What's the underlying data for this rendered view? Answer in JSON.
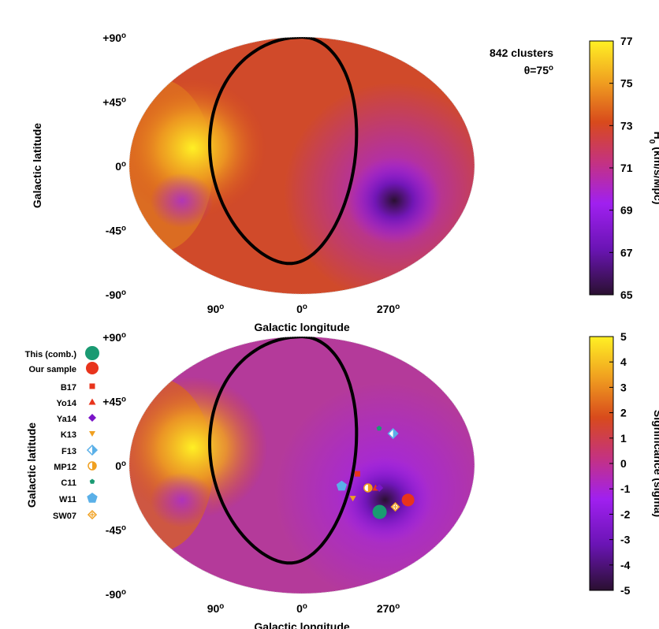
{
  "chart_data": [
    {
      "type": "heatmap",
      "projection": "mollweide",
      "ylabel": "Galactic latitude",
      "xlabel": "Galactic longitude",
      "yticks": [
        "+90",
        "+45",
        "0",
        "-45",
        "-90"
      ],
      "xticks": [
        "90",
        "0",
        "270"
      ],
      "degree_symbol": "o",
      "annotation_1": "842 clusters",
      "annotation_2": "θ=75",
      "colorbar": {
        "label": "H",
        "label_sub": "0",
        "label_units": " (km/s/Mpc)",
        "min": 65,
        "max": 77,
        "ticks": [
          "77",
          "75",
          "73",
          "71",
          "69",
          "67",
          "65"
        ]
      },
      "blobs": [
        {
          "l": 115,
          "b": 10,
          "strength": 1.0
        },
        {
          "l": 260,
          "b": -20,
          "strength": -1.0
        }
      ]
    },
    {
      "type": "heatmap",
      "projection": "mollweide",
      "ylabel": "Galactic latitude",
      "xlabel": "Galactic longitude",
      "yticks": [
        "+90",
        "+45",
        "0",
        "-45",
        "-90"
      ],
      "xticks": [
        "90",
        "0",
        "270"
      ],
      "degree_symbol": "o",
      "colorbar": {
        "label": "Significance (sigma)",
        "min": -5,
        "max": 5,
        "ticks": [
          "5",
          "4",
          "3",
          "2",
          "1",
          "0",
          "-1",
          "-2",
          "-3",
          "-4",
          "-5"
        ]
      },
      "legend": [
        {
          "name": "This (comb.)",
          "marker": "circle-lg",
          "color": "#1a9a72"
        },
        {
          "name": "Our sample",
          "marker": "circle-md",
          "color": "#e8341c"
        },
        {
          "name": "B17",
          "marker": "square",
          "color": "#e8341c"
        },
        {
          "name": "Yo14",
          "marker": "triangle",
          "color": "#e8341c"
        },
        {
          "name": "Ya14",
          "marker": "diamond",
          "color": "#7a14c8"
        },
        {
          "name": "K13",
          "marker": "triangle-down",
          "color": "#f0a020"
        },
        {
          "name": "F13",
          "marker": "diamond-half",
          "color": "#5ab0e8"
        },
        {
          "name": "MP12",
          "marker": "circle-half",
          "color": "#f0a020"
        },
        {
          "name": "C11",
          "marker": "pentagon-sm",
          "color": "#1a9a72"
        },
        {
          "name": "W11",
          "marker": "pentagon",
          "color": "#5ab0e8"
        },
        {
          "name": "SW07",
          "marker": "diamond-cross",
          "color": "#f0a020"
        }
      ],
      "points": [
        {
          "name": "This (comb.)",
          "l": 273,
          "b": -27
        },
        {
          "name": "Our sample",
          "l": 245,
          "b": -20
        },
        {
          "name": "B17",
          "l": 302,
          "b": -5
        },
        {
          "name": "Yo14",
          "l": 282,
          "b": -13
        },
        {
          "name": "Ya14",
          "l": 278,
          "b": -13
        },
        {
          "name": "K13",
          "l": 305,
          "b": -19
        },
        {
          "name": "F13",
          "l": 262,
          "b": 18
        },
        {
          "name": "MP12",
          "l": 290,
          "b": -13
        },
        {
          "name": "C11",
          "l": 276,
          "b": 21
        },
        {
          "name": "W11",
          "l": 318,
          "b": -12
        },
        {
          "name": "SW07",
          "l": 257,
          "b": -24
        }
      ],
      "blobs": [
        {
          "l": 115,
          "b": 10,
          "strength": 1.0
        },
        {
          "l": 270,
          "b": -20,
          "strength": -1.0
        }
      ]
    }
  ]
}
